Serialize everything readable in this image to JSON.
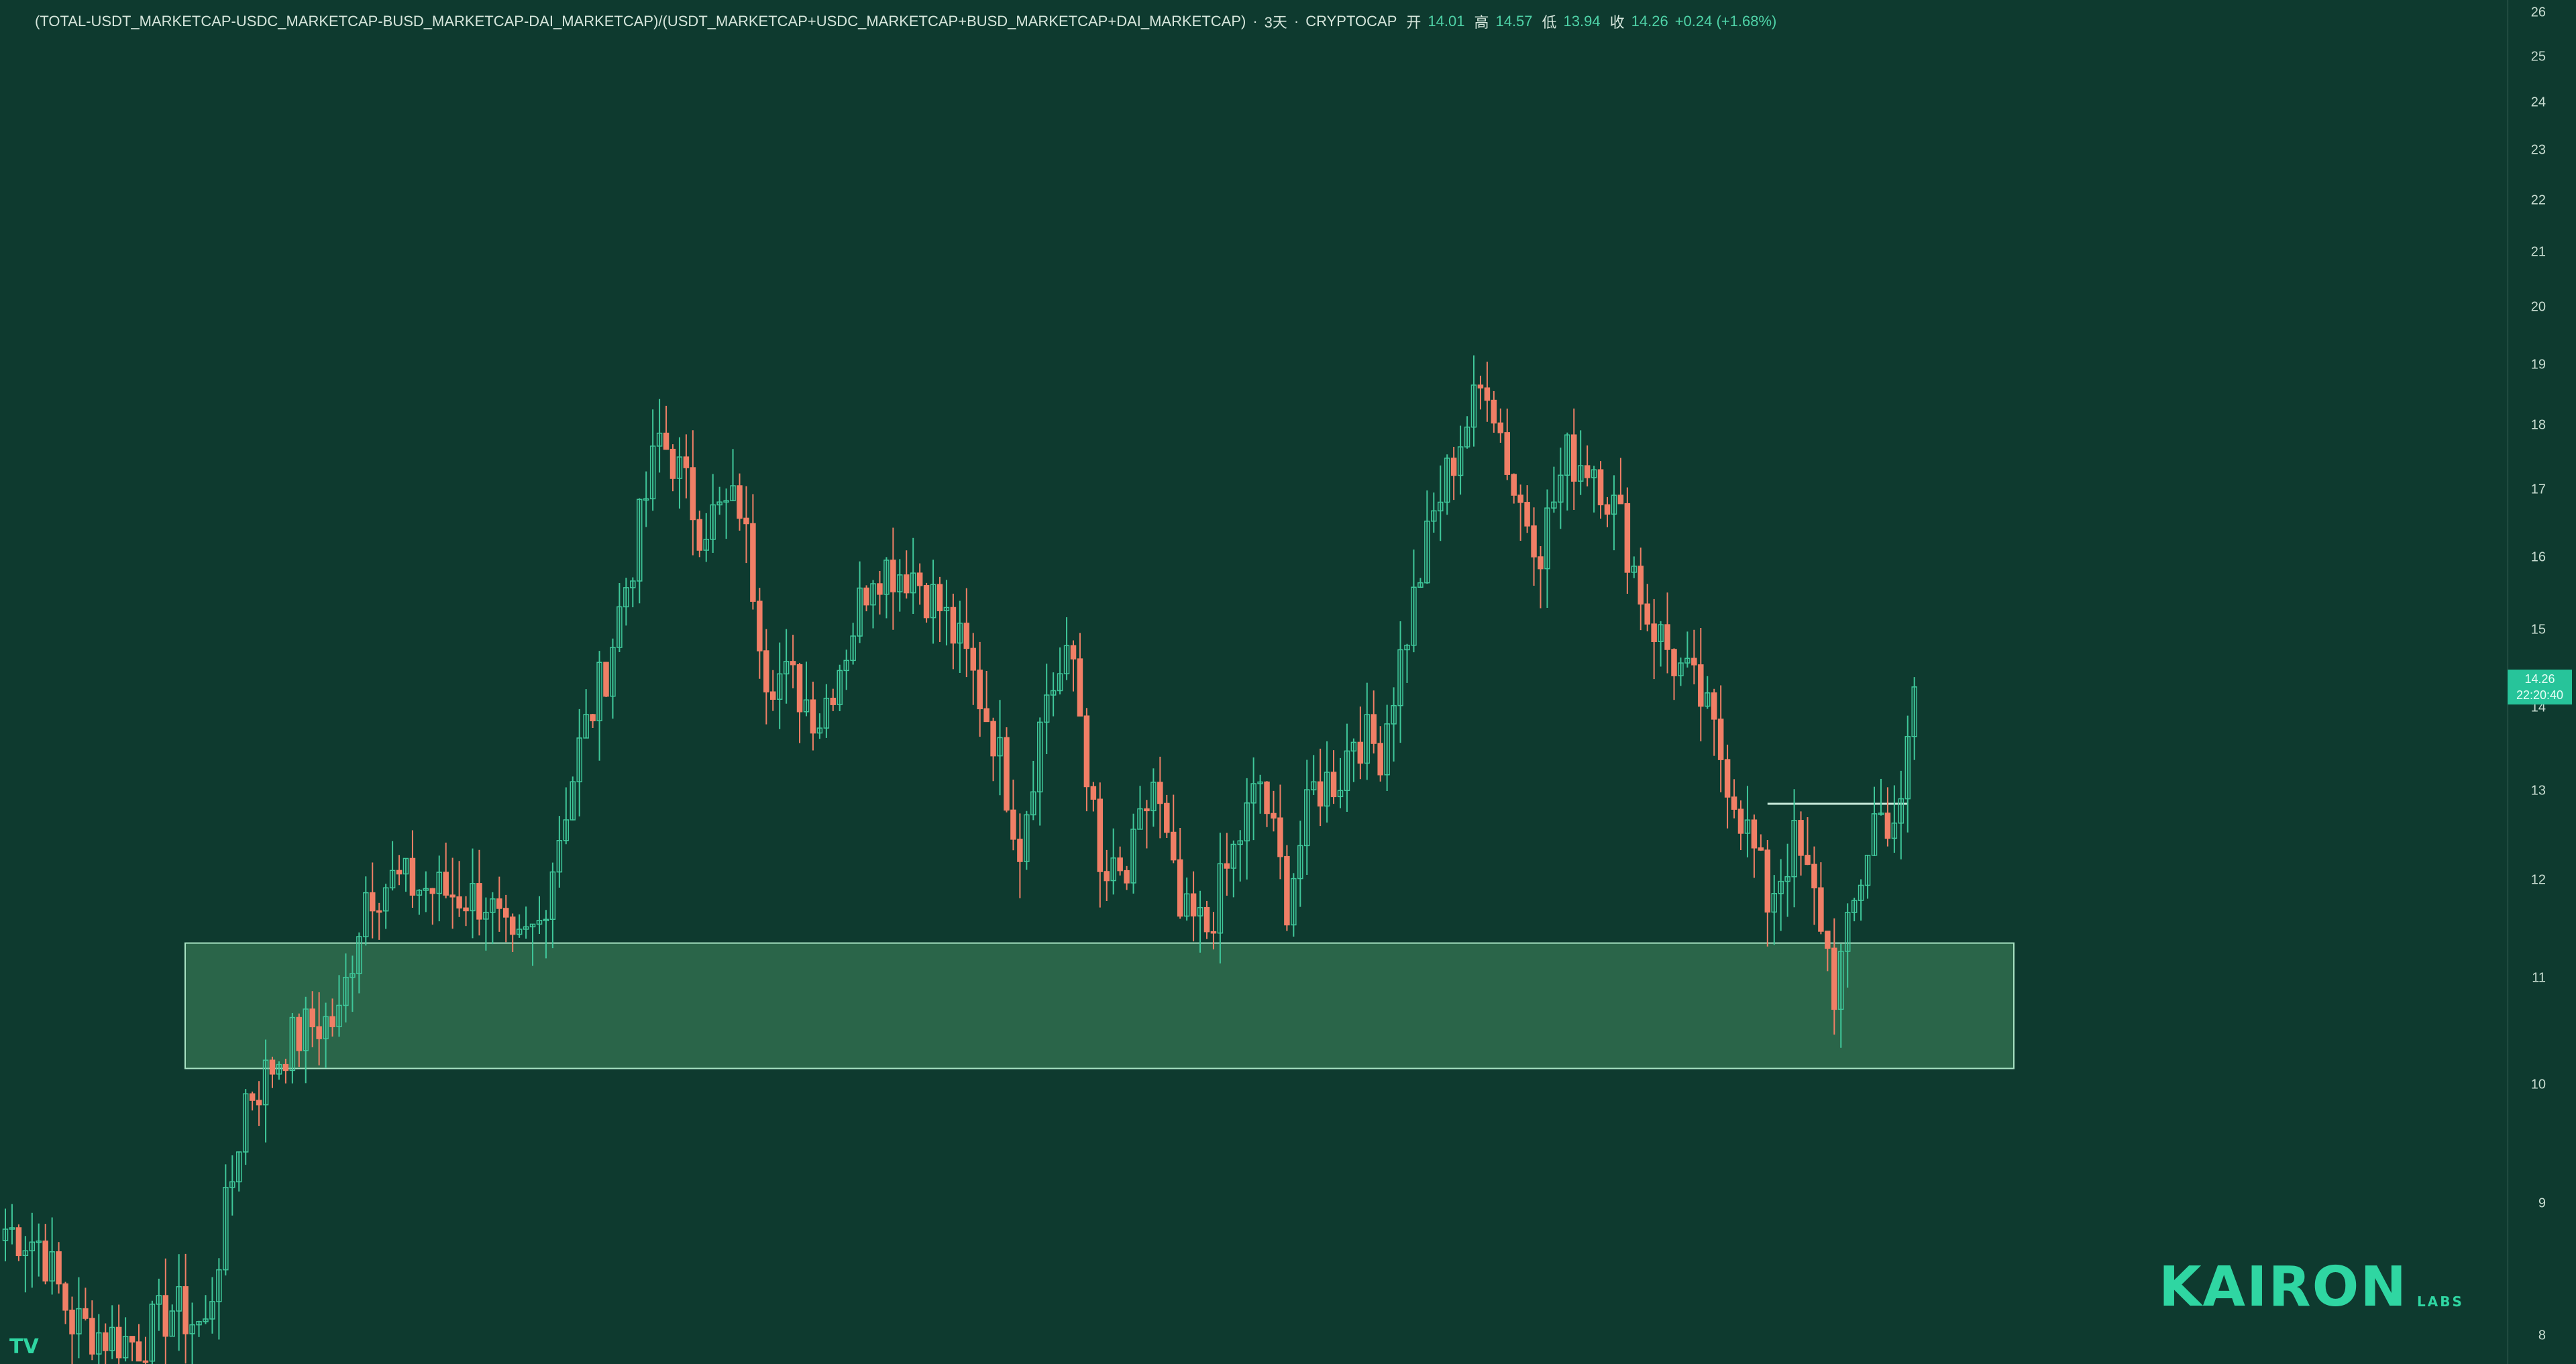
{
  "header": {
    "symbol": "(TOTAL-USDT_MARKETCAP-USDC_MARKETCAP-BUSD_MARKETCAP-DAI_MARKETCAP)/(USDT_MARKETCAP+USDC_MARKETCAP+BUSD_MARKETCAP+DAI_MARKETCAP)",
    "sep1": "·",
    "interval": "3天",
    "sep2": "·",
    "exchange": "CRYPTOCAP",
    "open_label": "开",
    "open_value": "14.01",
    "high_label": "高",
    "high_value": "14.57",
    "low_label": "低",
    "low_value": "13.94",
    "close_label": "收",
    "close_value": "14.26",
    "change": "+0.24 (+1.68%)"
  },
  "price_tag": {
    "price": "14.26",
    "countdown": "22:20:40"
  },
  "logo": {
    "word": "KAIRON",
    "sub": "LABS"
  },
  "tv_logo": "TV",
  "colors": {
    "background": "#0e3a2f",
    "up": "#3fc79a",
    "down": "#f07f66",
    "zone_fill": "#2e6a4c",
    "zone_stroke": "#a9e3c4",
    "accent": "#27c49a"
  },
  "chart_data": {
    "type": "candlestick",
    "title": "",
    "xlabel": "",
    "ylabel": "",
    "y_scale": "log",
    "ylim": [
      7.8,
      26.3
    ],
    "y_ticks": [
      8,
      9,
      10,
      11,
      12,
      13,
      14,
      15,
      16,
      17,
      18,
      19,
      20,
      21,
      22,
      23,
      24,
      25,
      26
    ],
    "support_zone": {
      "low": 10.15,
      "high": 11.35
    },
    "breakout_line": 12.85,
    "anchors": [
      [
        0,
        8.8
      ],
      [
        5,
        8.7
      ],
      [
        10,
        8.1
      ],
      [
        15,
        8.0
      ],
      [
        20,
        7.95
      ],
      [
        25,
        8.2
      ],
      [
        30,
        8.05
      ],
      [
        34,
        9.2
      ],
      [
        36,
        9.9
      ],
      [
        38,
        10.0
      ],
      [
        42,
        10.35
      ],
      [
        46,
        10.55
      ],
      [
        50,
        10.6
      ],
      [
        54,
        11.9
      ],
      [
        58,
        12.0
      ],
      [
        64,
        11.9
      ],
      [
        72,
        11.8
      ],
      [
        76,
        11.2
      ],
      [
        80,
        11.55
      ],
      [
        82,
        12.2
      ],
      [
        86,
        13.5
      ],
      [
        90,
        14.5
      ],
      [
        94,
        16.0
      ],
      [
        98,
        17.8
      ],
      [
        100,
        17.5
      ],
      [
        104,
        16.5
      ],
      [
        110,
        16.8
      ],
      [
        114,
        14.5
      ],
      [
        118,
        14.3
      ],
      [
        122,
        13.9
      ],
      [
        126,
        14.8
      ],
      [
        130,
        15.9
      ],
      [
        136,
        15.8
      ],
      [
        140,
        15.3
      ],
      [
        144,
        14.6
      ],
      [
        148,
        13.7
      ],
      [
        152,
        12.4
      ],
      [
        156,
        14.2
      ],
      [
        160,
        14.6
      ],
      [
        164,
        12.0
      ],
      [
        168,
        12.0
      ],
      [
        172,
        13.1
      ],
      [
        176,
        11.6
      ],
      [
        180,
        11.5
      ],
      [
        184,
        12.3
      ],
      [
        188,
        13.1
      ],
      [
        192,
        11.8
      ],
      [
        196,
        13.0
      ],
      [
        200,
        13.2
      ],
      [
        202,
        13.7
      ],
      [
        206,
        13.5
      ],
      [
        210,
        15.0
      ],
      [
        214,
        16.6
      ],
      [
        218,
        17.8
      ],
      [
        222,
        18.8
      ],
      [
        226,
        17.0
      ],
      [
        230,
        16.2
      ],
      [
        234,
        17.5
      ],
      [
        238,
        17.4
      ],
      [
        242,
        16.5
      ],
      [
        246,
        15.2
      ],
      [
        250,
        14.6
      ],
      [
        254,
        14.1
      ],
      [
        258,
        13.2
      ],
      [
        262,
        12.3
      ],
      [
        264,
        11.8
      ],
      [
        268,
        12.4
      ],
      [
        272,
        11.6
      ],
      [
        274,
        10.9
      ],
      [
        276,
        11.4
      ],
      [
        280,
        12.7
      ],
      [
        284,
        12.7
      ],
      [
        286,
        14.26
      ]
    ]
  }
}
